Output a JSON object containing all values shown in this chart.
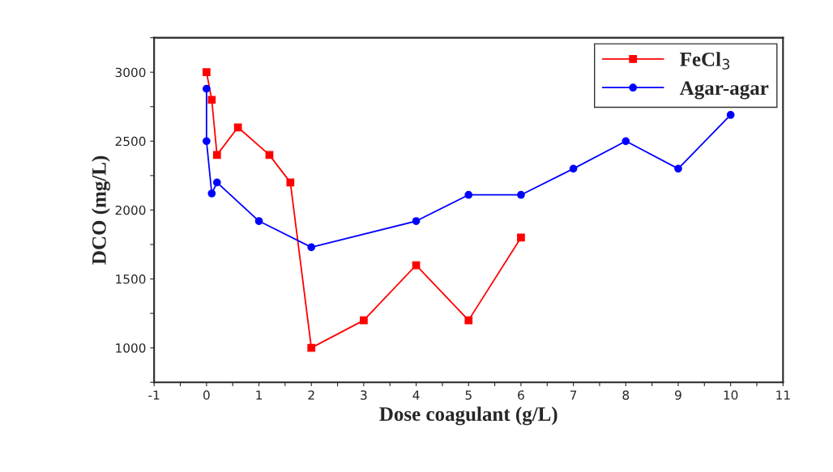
{
  "chart_data": {
    "type": "line",
    "xlabel": "Dose coagulant (g/L)",
    "ylabel": "DCO (mg/L)",
    "series": [
      {
        "name": "FeCl$_{3}$",
        "color": "#ff0000",
        "marker": "square",
        "x": [
          0,
          0.1,
          0.2,
          0.6,
          1.2,
          1.6,
          2,
          3,
          4,
          5,
          6
        ],
        "values": [
          3000,
          2800,
          2400,
          2600,
          2400,
          2200,
          1000,
          1200,
          1600,
          1200,
          1800
        ]
      },
      {
        "name": "Agar-agar",
        "color": "#0000ff",
        "marker": "circle",
        "x": [
          0,
          0,
          0.1,
          0.2,
          1,
          2,
          4,
          5,
          6,
          7,
          8,
          9,
          10
        ],
        "values": [
          2880,
          2500,
          2120,
          2200,
          1920,
          1730,
          1920,
          2110,
          2110,
          2300,
          2500,
          2300,
          2690
        ]
      }
    ],
    "xlim": [
      -1,
      11
    ],
    "xticks": [
      -1,
      {
        "value": -0.5,
        "label": null
      },
      0,
      {
        "value": 0.5,
        "label": null
      },
      1,
      {
        "value": 1.5,
        "label": null
      },
      2,
      {
        "value": 2.5,
        "label": null
      },
      3,
      {
        "value": 3.5,
        "label": null
      },
      4,
      {
        "value": 4.5,
        "label": null
      },
      5,
      {
        "value": 5.5,
        "label": null
      },
      6,
      {
        "value": 6.5,
        "label": null
      },
      7,
      {
        "value": 7.5,
        "label": null
      },
      8,
      {
        "value": 8.5,
        "label": null
      },
      9,
      {
        "value": 9.5,
        "label": null
      },
      10,
      {
        "value": 10.5,
        "label": null
      },
      11
    ],
    "ylim": [
      750,
      3250
    ],
    "yticks": [
      {
        "value": 750,
        "label": null
      },
      1000,
      {
        "value": 1250,
        "label": null
      },
      1500,
      {
        "value": 1750,
        "label": null
      },
      2000,
      {
        "value": 2250,
        "label": null
      },
      2500,
      {
        "value": 2750,
        "label": null
      },
      3000,
      {
        "value": 3250,
        "label": null
      }
    ],
    "grid": false,
    "legend": "top right",
    "line_style": "solid"
  }
}
